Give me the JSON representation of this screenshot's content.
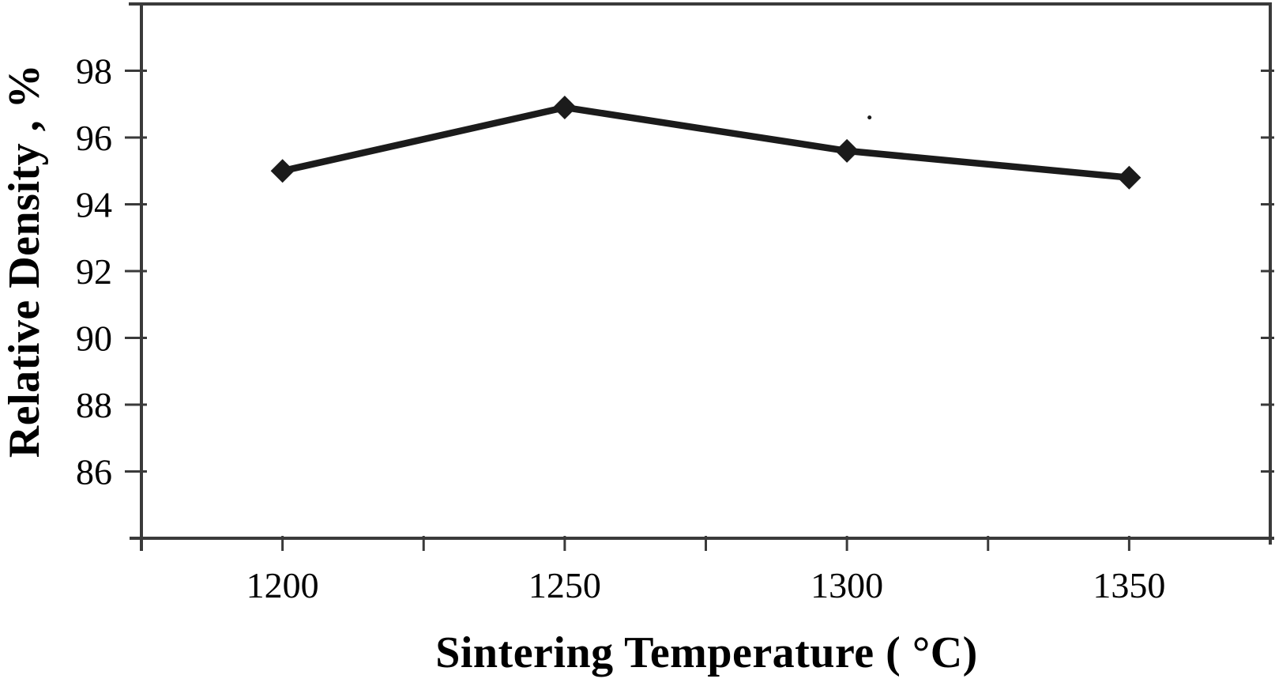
{
  "chart_data": {
    "type": "line",
    "title": "",
    "xlabel": "Sintering Temperature ( °C)",
    "ylabel": "Relative Density , %",
    "x": [
      1200,
      1250,
      1300,
      1350
    ],
    "series": [
      {
        "name": "Relative Density",
        "values": [
          95.0,
          96.9,
          95.6,
          94.8
        ]
      }
    ],
    "xlim": [
      1175,
      1375
    ],
    "ylim": [
      84,
      100
    ],
    "x_ticks": [
      1200,
      1225,
      1250,
      1275,
      1300,
      1325,
      1350
    ],
    "x_labeled_ticks": [
      1200,
      1250,
      1300,
      1350
    ],
    "x_tick_labels": [
      "1200",
      "1250",
      "1300",
      "1350"
    ],
    "y_ticks": [
      86,
      88,
      90,
      92,
      94,
      96,
      98
    ],
    "y_tick_labels": [
      "86",
      "88",
      "90",
      "92",
      "94",
      "96",
      "98"
    ],
    "grid": false,
    "legend": "none",
    "marker": "diamond",
    "marker_size": 15,
    "line_width": 8.5,
    "annotations": [
      {
        "type": "stray-dot",
        "x": 1304,
        "y": 96.6
      }
    ],
    "colors": {
      "line": "#1b1b1b",
      "marker": "#1b1b1b",
      "frame": "#3a3a3a",
      "text": "#000000",
      "background": "#ffffff"
    }
  }
}
